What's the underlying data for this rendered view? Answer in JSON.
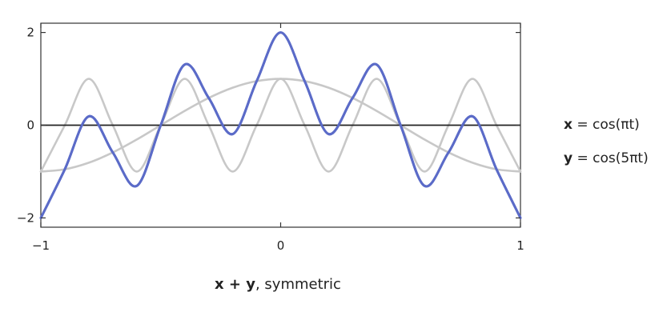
{
  "chart_data": {
    "type": "line",
    "title": "",
    "xlabel": "",
    "ylabel": "",
    "xlim": [
      -1,
      1
    ],
    "ylim": [
      -2.2,
      2.2
    ],
    "xticks": [
      -1,
      0,
      1
    ],
    "xtick_labels": [
      "−1",
      "0",
      "1"
    ],
    "yticks": [
      -2,
      0,
      2
    ],
    "ytick_labels": [
      "−2",
      "0",
      "2"
    ],
    "grid": false,
    "zero_line": true,
    "series": [
      {
        "name": "x = cos(πt)",
        "color": "#c8c8c8",
        "x": [
          -1,
          -0.9,
          -0.8,
          -0.7,
          -0.6,
          -0.5,
          -0.4,
          -0.3,
          -0.2,
          -0.1,
          0,
          0.1,
          0.2,
          0.3,
          0.4,
          0.5,
          0.6,
          0.7,
          0.8,
          0.9,
          1
        ],
        "values": [
          -1,
          -0.951,
          -0.809,
          -0.588,
          -0.309,
          0,
          0.309,
          0.588,
          0.809,
          0.951,
          1,
          0.951,
          0.809,
          0.588,
          0.309,
          0,
          -0.309,
          -0.588,
          -0.809,
          -0.951,
          -1
        ]
      },
      {
        "name": "y = cos(5πt)",
        "color": "#c8c8c8",
        "x": [
          -1,
          -0.9,
          -0.8,
          -0.7,
          -0.6,
          -0.5,
          -0.4,
          -0.3,
          -0.2,
          -0.1,
          0,
          0.1,
          0.2,
          0.3,
          0.4,
          0.5,
          0.6,
          0.7,
          0.8,
          0.9,
          1
        ],
        "values": [
          -1,
          0,
          1,
          0,
          -1,
          0,
          1,
          0,
          -1,
          0,
          1,
          0,
          -1,
          0,
          1,
          0,
          -1,
          0,
          1,
          0,
          -1
        ]
      },
      {
        "name": "x + y, symmetric",
        "color": "#5b6bc8",
        "x": [
          -1,
          -0.9,
          -0.8,
          -0.7,
          -0.6,
          -0.5,
          -0.4,
          -0.3,
          -0.2,
          -0.1,
          0,
          0.1,
          0.2,
          0.3,
          0.4,
          0.5,
          0.6,
          0.7,
          0.8,
          0.9,
          1
        ],
        "values": [
          -2,
          -0.951,
          0.191,
          -0.588,
          -1.309,
          0,
          1.309,
          0.588,
          -0.191,
          0.951,
          2,
          0.951,
          -0.191,
          0.588,
          1.309,
          0,
          -1.309,
          -0.588,
          0.191,
          -0.951,
          -2
        ]
      }
    ],
    "legend_entries": [
      {
        "lhs": "x",
        "rhs": " = cos(πt)"
      },
      {
        "lhs": "y",
        "rhs": " = cos(5πt)"
      }
    ],
    "caption": {
      "bold": "x + y",
      "rest": ", symmetric"
    }
  }
}
